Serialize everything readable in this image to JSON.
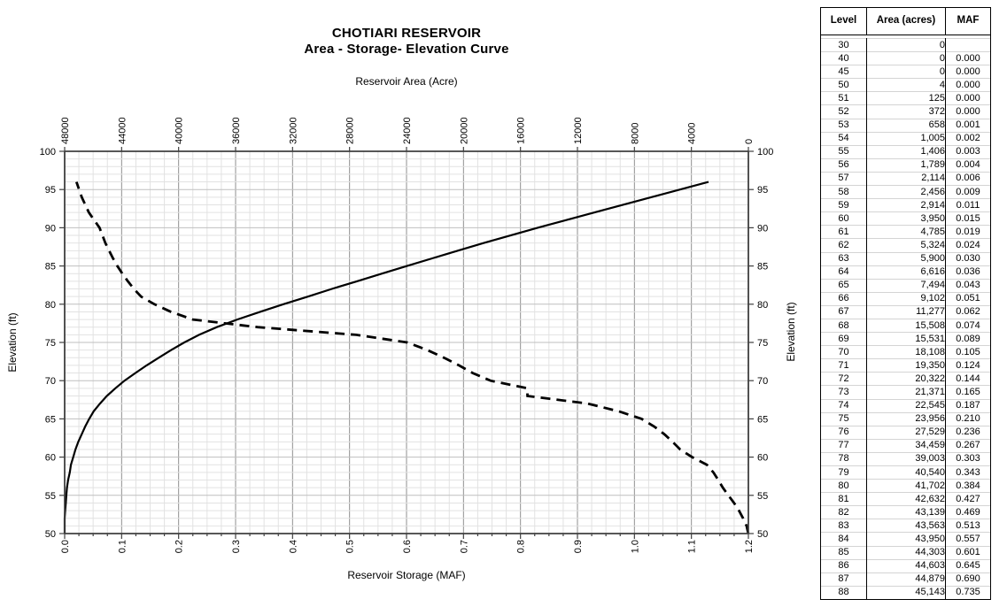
{
  "chart_data": {
    "type": "line",
    "title": "CHOTIARI RESERVOIR",
    "subtitle": "Area - Storage- Elevation Curve",
    "grid": "on",
    "top_axis": {
      "label": "Reservoir Area (Acre)",
      "min": 0,
      "max": 48000,
      "major": 4000,
      "minor": 1000,
      "reversed": true,
      "ticks": [
        "48000",
        "44000",
        "40000",
        "36000",
        "32000",
        "28000",
        "24000",
        "20000",
        "16000",
        "12000",
        "8000",
        "4000",
        "0"
      ]
    },
    "bottom_axis": {
      "label": "Reservoir Storage (MAF)",
      "min": 0,
      "max": 1.2,
      "major": 0.1,
      "minor": 0.025,
      "ticks": [
        "0.0",
        "0.1",
        "0.2",
        "0.3",
        "0.4",
        "0.5",
        "0.6",
        "0.7",
        "0.8",
        "0.9",
        "1.0",
        "1.1",
        "1.2"
      ]
    },
    "left_axis": {
      "label": "Elevation (ft)",
      "min": 50,
      "max": 100,
      "major": 5,
      "minor": 1,
      "ticks": [
        "100",
        "95",
        "90",
        "85",
        "80",
        "75",
        "70",
        "65",
        "60",
        "55",
        "50"
      ]
    },
    "right_axis": {
      "label": "Elevation (ft)",
      "ticks": [
        "100",
        "95",
        "90",
        "85",
        "80",
        "75",
        "70",
        "65",
        "60",
        "55",
        "50"
      ]
    },
    "series": [
      {
        "name": "storage-elevation",
        "style": "solid",
        "x_axis": "bottom",
        "points": [
          [
            0.0,
            50
          ],
          [
            0.0,
            51
          ],
          [
            0.0,
            52
          ],
          [
            0.001,
            53
          ],
          [
            0.002,
            54
          ],
          [
            0.003,
            55
          ],
          [
            0.004,
            56
          ],
          [
            0.006,
            57
          ],
          [
            0.009,
            58
          ],
          [
            0.011,
            59
          ],
          [
            0.015,
            60
          ],
          [
            0.019,
            61
          ],
          [
            0.024,
            62
          ],
          [
            0.03,
            63
          ],
          [
            0.036,
            64
          ],
          [
            0.043,
            65
          ],
          [
            0.051,
            66
          ],
          [
            0.062,
            67
          ],
          [
            0.074,
            68
          ],
          [
            0.089,
            69
          ],
          [
            0.105,
            70
          ],
          [
            0.124,
            71
          ],
          [
            0.144,
            72
          ],
          [
            0.165,
            73
          ],
          [
            0.187,
            74
          ],
          [
            0.21,
            75
          ],
          [
            0.236,
            76
          ],
          [
            0.267,
            77
          ],
          [
            0.303,
            78
          ],
          [
            0.343,
            79
          ],
          [
            0.384,
            80
          ],
          [
            0.427,
            81
          ],
          [
            0.469,
            82
          ],
          [
            0.513,
            83
          ],
          [
            0.557,
            84
          ],
          [
            0.601,
            85
          ],
          [
            0.645,
            86
          ],
          [
            0.69,
            87
          ],
          [
            0.735,
            88
          ],
          [
            0.83,
            90
          ],
          [
            0.93,
            92
          ],
          [
            1.03,
            94
          ],
          [
            1.13,
            96
          ]
        ]
      },
      {
        "name": "area-elevation",
        "style": "dashed",
        "x_axis": "top",
        "points": [
          [
            4,
            50
          ],
          [
            125,
            51
          ],
          [
            372,
            52
          ],
          [
            658,
            53
          ],
          [
            1005,
            54
          ],
          [
            1406,
            55
          ],
          [
            1789,
            56
          ],
          [
            2114,
            57
          ],
          [
            2456,
            58
          ],
          [
            2914,
            59
          ],
          [
            3950,
            60
          ],
          [
            4785,
            61
          ],
          [
            5324,
            62
          ],
          [
            5900,
            63
          ],
          [
            6616,
            64
          ],
          [
            7494,
            65
          ],
          [
            9102,
            66
          ],
          [
            11277,
            67
          ],
          [
            15508,
            68
          ],
          [
            15531,
            69
          ],
          [
            18108,
            70
          ],
          [
            19350,
            71
          ],
          [
            20322,
            72
          ],
          [
            21371,
            73
          ],
          [
            22545,
            74
          ],
          [
            23956,
            75
          ],
          [
            27529,
            76
          ],
          [
            34459,
            77
          ],
          [
            39003,
            78
          ],
          [
            40540,
            79
          ],
          [
            41702,
            80
          ],
          [
            42632,
            81
          ],
          [
            43139,
            82
          ],
          [
            43563,
            83
          ],
          [
            43950,
            84
          ],
          [
            44303,
            85
          ],
          [
            44603,
            86
          ],
          [
            44879,
            87
          ],
          [
            45143,
            88
          ],
          [
            45550,
            90
          ],
          [
            46300,
            92
          ],
          [
            46800,
            94
          ],
          [
            47170,
            96
          ]
        ]
      }
    ],
    "colors": {
      "curve": "#000000",
      "axis": "#3f3f3f",
      "grid_minor": "#e2e2e2",
      "grid_major_v": "#8f8f8f",
      "grid_major_h": "#bfbfbf"
    }
  },
  "table": {
    "headers": [
      "Level",
      "Area (acres)",
      "MAF"
    ],
    "rows": [
      [
        "30",
        "0",
        ""
      ],
      [
        "40",
        "0",
        "0.000"
      ],
      [
        "45",
        "0",
        "0.000"
      ],
      [
        "50",
        "4",
        "0.000"
      ],
      [
        "51",
        "125",
        "0.000"
      ],
      [
        "52",
        "372",
        "0.000"
      ],
      [
        "53",
        "658",
        "0.001"
      ],
      [
        "54",
        "1,005",
        "0.002"
      ],
      [
        "55",
        "1,406",
        "0.003"
      ],
      [
        "56",
        "1,789",
        "0.004"
      ],
      [
        "57",
        "2,114",
        "0.006"
      ],
      [
        "58",
        "2,456",
        "0.009"
      ],
      [
        "59",
        "2,914",
        "0.011"
      ],
      [
        "60",
        "3,950",
        "0.015"
      ],
      [
        "61",
        "4,785",
        "0.019"
      ],
      [
        "62",
        "5,324",
        "0.024"
      ],
      [
        "63",
        "5,900",
        "0.030"
      ],
      [
        "64",
        "6,616",
        "0.036"
      ],
      [
        "65",
        "7,494",
        "0.043"
      ],
      [
        "66",
        "9,102",
        "0.051"
      ],
      [
        "67",
        "11,277",
        "0.062"
      ],
      [
        "68",
        "15,508",
        "0.074"
      ],
      [
        "69",
        "15,531",
        "0.089"
      ],
      [
        "70",
        "18,108",
        "0.105"
      ],
      [
        "71",
        "19,350",
        "0.124"
      ],
      [
        "72",
        "20,322",
        "0.144"
      ],
      [
        "73",
        "21,371",
        "0.165"
      ],
      [
        "74",
        "22,545",
        "0.187"
      ],
      [
        "75",
        "23,956",
        "0.210"
      ],
      [
        "76",
        "27,529",
        "0.236"
      ],
      [
        "77",
        "34,459",
        "0.267"
      ],
      [
        "78",
        "39,003",
        "0.303"
      ],
      [
        "79",
        "40,540",
        "0.343"
      ],
      [
        "80",
        "41,702",
        "0.384"
      ],
      [
        "81",
        "42,632",
        "0.427"
      ],
      [
        "82",
        "43,139",
        "0.469"
      ],
      [
        "83",
        "43,563",
        "0.513"
      ],
      [
        "84",
        "43,950",
        "0.557"
      ],
      [
        "85",
        "44,303",
        "0.601"
      ],
      [
        "86",
        "44,603",
        "0.645"
      ],
      [
        "87",
        "44,879",
        "0.690"
      ],
      [
        "88",
        "45,143",
        "0.735"
      ]
    ]
  }
}
